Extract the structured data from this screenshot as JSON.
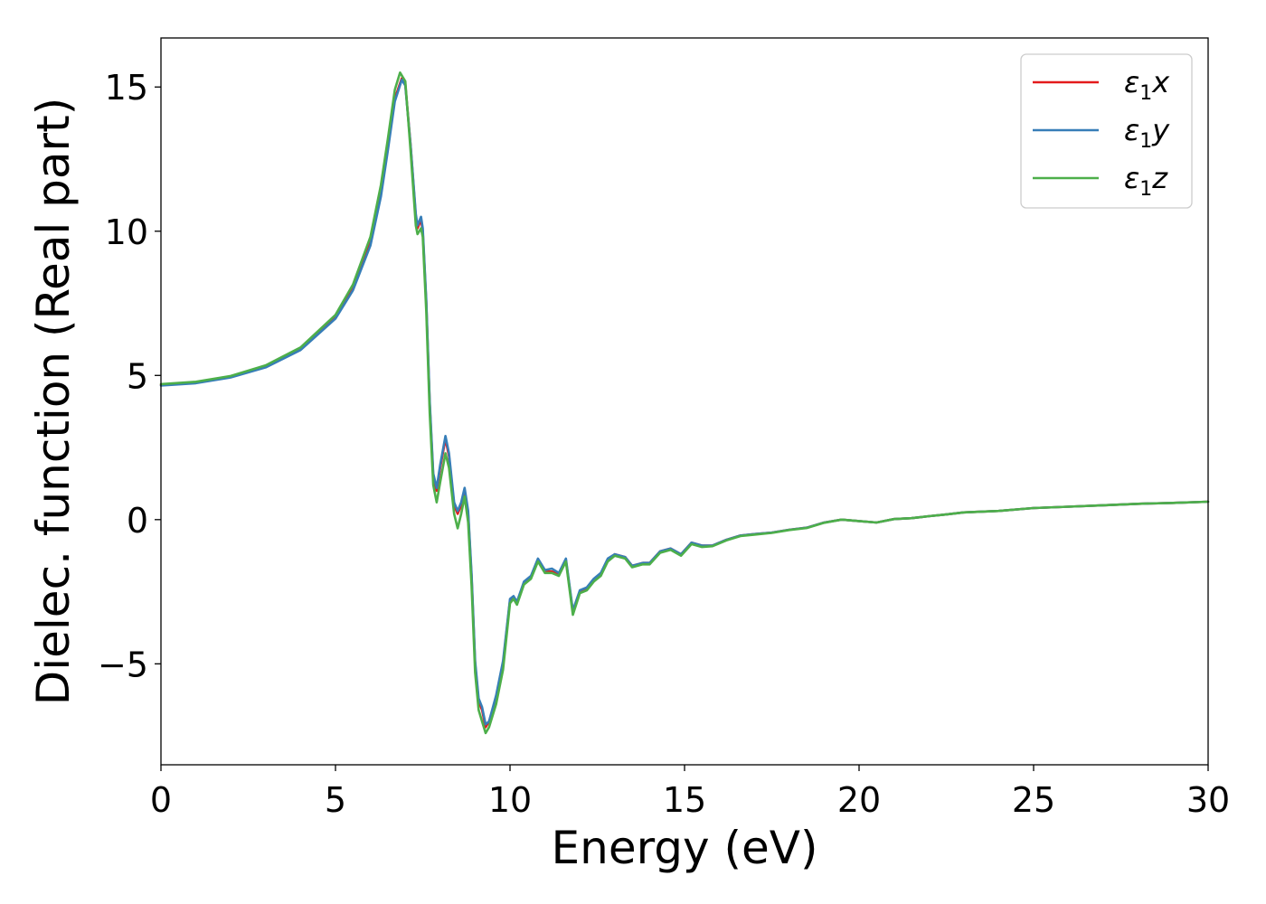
{
  "chart_data": {
    "type": "line",
    "title": "",
    "xlabel": "Energy (eV)",
    "ylabel": "Dielec. function (Real part)",
    "xlim": [
      0,
      30
    ],
    "ylim": [
      -8.5,
      16.7
    ],
    "xticks": [
      0,
      5,
      10,
      15,
      20,
      25,
      30
    ],
    "xtick_labels": [
      "0",
      "5",
      "10",
      "15",
      "20",
      "25",
      "30"
    ],
    "yticks": [
      -5,
      0,
      5,
      10,
      15
    ],
    "ytick_labels": [
      "−5",
      "0",
      "5",
      "10",
      "15"
    ],
    "grid": false,
    "legend_position": "top-right",
    "series": [
      {
        "name": "ε1x",
        "label_parts": [
          "ε",
          "1",
          "x"
        ],
        "color": "#e41a1c",
        "points": [
          [
            0,
            4.67
          ],
          [
            1,
            4.75
          ],
          [
            2,
            4.95
          ],
          [
            3,
            5.3
          ],
          [
            4,
            5.9
          ],
          [
            5,
            7.0
          ],
          [
            5.5,
            8.0
          ],
          [
            6,
            9.6
          ],
          [
            6.3,
            11.3
          ],
          [
            6.5,
            12.9
          ],
          [
            6.7,
            14.6
          ],
          [
            6.9,
            15.3
          ],
          [
            7.0,
            15.1
          ],
          [
            7.15,
            13.0
          ],
          [
            7.3,
            10.5
          ],
          [
            7.35,
            10.1
          ],
          [
            7.45,
            10.4
          ],
          [
            7.5,
            10.0
          ],
          [
            7.6,
            7.5
          ],
          [
            7.7,
            4.0
          ],
          [
            7.8,
            1.5
          ],
          [
            7.9,
            1.0
          ],
          [
            8.0,
            1.8
          ],
          [
            8.15,
            2.8
          ],
          [
            8.25,
            2.2
          ],
          [
            8.4,
            0.5
          ],
          [
            8.5,
            0.2
          ],
          [
            8.6,
            0.5
          ],
          [
            8.7,
            1.0
          ],
          [
            8.8,
            0.2
          ],
          [
            8.9,
            -2.0
          ],
          [
            9.0,
            -5.0
          ],
          [
            9.1,
            -6.3
          ],
          [
            9.2,
            -6.6
          ],
          [
            9.3,
            -7.2
          ],
          [
            9.4,
            -7.0
          ],
          [
            9.6,
            -6.2
          ],
          [
            9.8,
            -5.0
          ],
          [
            10.0,
            -2.8
          ],
          [
            10.1,
            -2.7
          ],
          [
            10.2,
            -2.9
          ],
          [
            10.4,
            -2.2
          ],
          [
            10.6,
            -2.0
          ],
          [
            10.8,
            -1.4
          ],
          [
            11.0,
            -1.8
          ],
          [
            11.2,
            -1.8
          ],
          [
            11.4,
            -1.9
          ],
          [
            11.6,
            -1.4
          ],
          [
            11.8,
            -3.2
          ],
          [
            12.0,
            -2.5
          ],
          [
            12.2,
            -2.4
          ],
          [
            12.4,
            -2.1
          ],
          [
            12.6,
            -1.9
          ],
          [
            12.8,
            -1.4
          ],
          [
            13.0,
            -1.2
          ],
          [
            13.3,
            -1.3
          ],
          [
            13.5,
            -1.6
          ],
          [
            13.8,
            -1.5
          ],
          [
            14.0,
            -1.5
          ],
          [
            14.3,
            -1.1
          ],
          [
            14.6,
            -1.0
          ],
          [
            14.9,
            -1.2
          ],
          [
            15.2,
            -0.8
          ],
          [
            15.5,
            -0.9
          ],
          [
            15.8,
            -0.9
          ],
          [
            16.2,
            -0.7
          ],
          [
            16.6,
            -0.55
          ],
          [
            17.0,
            -0.5
          ],
          [
            17.5,
            -0.45
          ],
          [
            18.0,
            -0.35
          ],
          [
            18.5,
            -0.28
          ],
          [
            19.0,
            -0.1
          ],
          [
            19.5,
            0.0
          ],
          [
            20.0,
            -0.05
          ],
          [
            20.5,
            -0.1
          ],
          [
            21.0,
            0.02
          ],
          [
            21.5,
            0.05
          ],
          [
            22.0,
            0.12
          ],
          [
            22.5,
            0.18
          ],
          [
            23.0,
            0.25
          ],
          [
            24.0,
            0.3
          ],
          [
            25.0,
            0.4
          ],
          [
            26.0,
            0.45
          ],
          [
            27.0,
            0.5
          ],
          [
            28.0,
            0.55
          ],
          [
            29.0,
            0.58
          ],
          [
            30.0,
            0.62
          ]
        ]
      },
      {
        "name": "ε1y",
        "label_parts": [
          "ε",
          "1",
          "y"
        ],
        "color": "#377eb8",
        "points": [
          [
            0,
            4.65
          ],
          [
            1,
            4.73
          ],
          [
            2,
            4.93
          ],
          [
            3,
            5.28
          ],
          [
            4,
            5.88
          ],
          [
            5,
            6.97
          ],
          [
            5.5,
            7.95
          ],
          [
            6,
            9.5
          ],
          [
            6.3,
            11.2
          ],
          [
            6.5,
            12.8
          ],
          [
            6.7,
            14.5
          ],
          [
            6.9,
            15.25
          ],
          [
            7.0,
            15.05
          ],
          [
            7.15,
            13.0
          ],
          [
            7.3,
            10.6
          ],
          [
            7.35,
            10.2
          ],
          [
            7.45,
            10.5
          ],
          [
            7.5,
            10.1
          ],
          [
            7.6,
            7.6
          ],
          [
            7.7,
            4.1
          ],
          [
            7.8,
            1.6
          ],
          [
            7.9,
            1.1
          ],
          [
            8.0,
            1.9
          ],
          [
            8.15,
            2.9
          ],
          [
            8.25,
            2.3
          ],
          [
            8.4,
            0.6
          ],
          [
            8.5,
            0.3
          ],
          [
            8.6,
            0.6
          ],
          [
            8.7,
            1.1
          ],
          [
            8.8,
            0.3
          ],
          [
            8.9,
            -1.9
          ],
          [
            9.0,
            -4.9
          ],
          [
            9.1,
            -6.2
          ],
          [
            9.2,
            -6.5
          ],
          [
            9.3,
            -7.1
          ],
          [
            9.4,
            -7.0
          ],
          [
            9.6,
            -6.1
          ],
          [
            9.8,
            -4.9
          ],
          [
            10.0,
            -2.75
          ],
          [
            10.1,
            -2.65
          ],
          [
            10.2,
            -2.85
          ],
          [
            10.4,
            -2.15
          ],
          [
            10.6,
            -1.95
          ],
          [
            10.8,
            -1.35
          ],
          [
            11.0,
            -1.75
          ],
          [
            11.2,
            -1.7
          ],
          [
            11.4,
            -1.85
          ],
          [
            11.6,
            -1.35
          ],
          [
            11.8,
            -3.15
          ],
          [
            12.0,
            -2.45
          ],
          [
            12.2,
            -2.35
          ],
          [
            12.4,
            -2.05
          ],
          [
            12.6,
            -1.85
          ],
          [
            12.8,
            -1.35
          ],
          [
            13.0,
            -1.2
          ],
          [
            13.3,
            -1.3
          ],
          [
            13.5,
            -1.6
          ],
          [
            13.8,
            -1.5
          ],
          [
            14.0,
            -1.5
          ],
          [
            14.3,
            -1.1
          ],
          [
            14.6,
            -1.0
          ],
          [
            14.9,
            -1.2
          ],
          [
            15.2,
            -0.8
          ],
          [
            15.5,
            -0.9
          ],
          [
            15.8,
            -0.9
          ],
          [
            16.2,
            -0.7
          ],
          [
            16.6,
            -0.55
          ],
          [
            17.0,
            -0.5
          ],
          [
            17.5,
            -0.45
          ],
          [
            18.0,
            -0.35
          ],
          [
            18.5,
            -0.28
          ],
          [
            19.0,
            -0.1
          ],
          [
            19.5,
            0.0
          ],
          [
            20.0,
            -0.05
          ],
          [
            20.5,
            -0.1
          ],
          [
            21.0,
            0.02
          ],
          [
            21.5,
            0.05
          ],
          [
            22.0,
            0.12
          ],
          [
            22.5,
            0.18
          ],
          [
            23.0,
            0.25
          ],
          [
            24.0,
            0.3
          ],
          [
            25.0,
            0.4
          ],
          [
            26.0,
            0.45
          ],
          [
            27.0,
            0.5
          ],
          [
            28.0,
            0.55
          ],
          [
            29.0,
            0.58
          ],
          [
            30.0,
            0.62
          ]
        ]
      },
      {
        "name": "ε1z",
        "label_parts": [
          "ε",
          "1",
          "z"
        ],
        "color": "#4daf4a",
        "points": [
          [
            0,
            4.7
          ],
          [
            1,
            4.78
          ],
          [
            2,
            4.98
          ],
          [
            3,
            5.35
          ],
          [
            4,
            5.97
          ],
          [
            5,
            7.1
          ],
          [
            5.5,
            8.15
          ],
          [
            6,
            9.8
          ],
          [
            6.3,
            11.6
          ],
          [
            6.5,
            13.2
          ],
          [
            6.7,
            14.9
          ],
          [
            6.85,
            15.5
          ],
          [
            7.0,
            15.2
          ],
          [
            7.15,
            12.8
          ],
          [
            7.3,
            10.2
          ],
          [
            7.35,
            9.9
          ],
          [
            7.45,
            10.1
          ],
          [
            7.5,
            9.8
          ],
          [
            7.6,
            7.2
          ],
          [
            7.7,
            3.7
          ],
          [
            7.8,
            1.2
          ],
          [
            7.9,
            0.6
          ],
          [
            8.0,
            1.3
          ],
          [
            8.15,
            2.3
          ],
          [
            8.25,
            1.8
          ],
          [
            8.4,
            0.2
          ],
          [
            8.5,
            -0.3
          ],
          [
            8.6,
            0.2
          ],
          [
            8.7,
            0.8
          ],
          [
            8.8,
            -0.1
          ],
          [
            8.9,
            -2.3
          ],
          [
            9.0,
            -5.3
          ],
          [
            9.1,
            -6.6
          ],
          [
            9.2,
            -7.0
          ],
          [
            9.3,
            -7.4
          ],
          [
            9.4,
            -7.2
          ],
          [
            9.6,
            -6.4
          ],
          [
            9.8,
            -5.2
          ],
          [
            10.0,
            -2.9
          ],
          [
            10.1,
            -2.75
          ],
          [
            10.2,
            -2.95
          ],
          [
            10.4,
            -2.25
          ],
          [
            10.6,
            -2.05
          ],
          [
            10.8,
            -1.45
          ],
          [
            11.0,
            -1.85
          ],
          [
            11.2,
            -1.85
          ],
          [
            11.4,
            -1.95
          ],
          [
            11.6,
            -1.45
          ],
          [
            11.8,
            -3.3
          ],
          [
            12.0,
            -2.55
          ],
          [
            12.2,
            -2.45
          ],
          [
            12.4,
            -2.15
          ],
          [
            12.6,
            -1.95
          ],
          [
            12.8,
            -1.45
          ],
          [
            13.0,
            -1.25
          ],
          [
            13.3,
            -1.35
          ],
          [
            13.5,
            -1.65
          ],
          [
            13.8,
            -1.55
          ],
          [
            14.0,
            -1.55
          ],
          [
            14.3,
            -1.15
          ],
          [
            14.6,
            -1.05
          ],
          [
            14.9,
            -1.25
          ],
          [
            15.2,
            -0.85
          ],
          [
            15.5,
            -0.95
          ],
          [
            15.8,
            -0.92
          ],
          [
            16.2,
            -0.72
          ],
          [
            16.6,
            -0.57
          ],
          [
            17.0,
            -0.52
          ],
          [
            17.5,
            -0.46
          ],
          [
            18.0,
            -0.36
          ],
          [
            18.5,
            -0.29
          ],
          [
            19.0,
            -0.11
          ],
          [
            19.5,
            0.0
          ],
          [
            20.0,
            -0.05
          ],
          [
            20.5,
            -0.1
          ],
          [
            21.0,
            0.02
          ],
          [
            21.5,
            0.05
          ],
          [
            22.0,
            0.12
          ],
          [
            22.5,
            0.18
          ],
          [
            23.0,
            0.25
          ],
          [
            24.0,
            0.3
          ],
          [
            25.0,
            0.4
          ],
          [
            26.0,
            0.45
          ],
          [
            27.0,
            0.5
          ],
          [
            28.0,
            0.55
          ],
          [
            29.0,
            0.58
          ],
          [
            30.0,
            0.62
          ]
        ]
      }
    ]
  }
}
